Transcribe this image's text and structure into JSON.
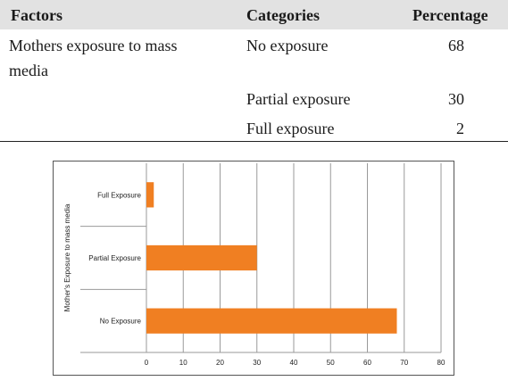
{
  "table": {
    "headers": [
      "Factors",
      "Categories",
      "Percentage"
    ],
    "factor": "Mothers exposure to mass media",
    "factor_line1": "Mothers exposure to mass",
    "factor_line2": "media",
    "rows": [
      {
        "category": "No exposure",
        "percentage": "68"
      },
      {
        "category": "Partial exposure",
        "percentage": "30"
      },
      {
        "category": "Full exposure",
        "percentage": "2"
      }
    ]
  },
  "chart_data": {
    "type": "bar",
    "orientation": "horizontal",
    "categories": [
      "No Exposure",
      "Partial Exposure",
      "Full Exposure"
    ],
    "values": [
      68,
      30,
      2
    ],
    "ylabel": "Mother's Exposure to mass media",
    "xlabel": "",
    "xlim": [
      0,
      80
    ],
    "xticks": [
      0,
      10,
      20,
      30,
      40,
      50,
      60,
      70,
      80
    ],
    "bar_color": "#f07f22",
    "grid": true
  }
}
